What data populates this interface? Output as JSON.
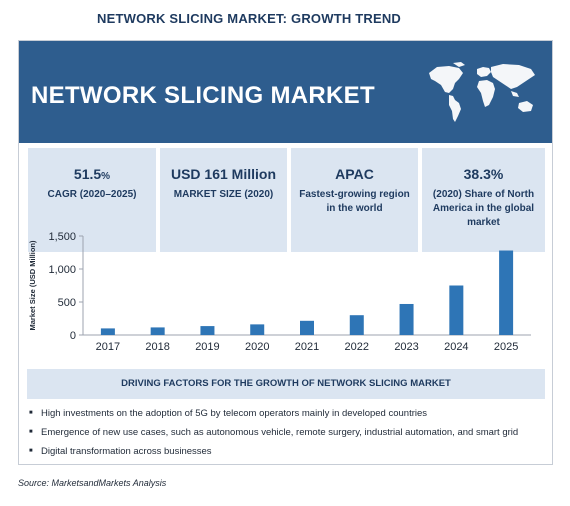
{
  "header": {
    "title": "NETWORK SLICING MARKET: GROWTH TREND"
  },
  "banner": {
    "title": "NETWORK SLICING MARKET",
    "map_icon": "world-map-icon",
    "color": "#2e5d8e"
  },
  "stats": [
    {
      "value": "51.5",
      "unit": "%",
      "label": "CAGR (2020–2025)"
    },
    {
      "value": "USD 161 Million",
      "unit": "",
      "label": "MARKET SIZE (2020)"
    },
    {
      "value": "APAC",
      "unit": "",
      "label": "Fastest-growing region in the world"
    },
    {
      "value": "38.3%",
      "unit": "",
      "label": "(2020) Share of North America in the global market"
    }
  ],
  "chart_data": {
    "type": "bar",
    "categories": [
      "2017",
      "2018",
      "2019",
      "2020",
      "2021",
      "2022",
      "2023",
      "2024",
      "2025"
    ],
    "values": [
      100,
      115,
      135,
      161,
      215,
      300,
      470,
      750,
      1280
    ],
    "ylabel": "Market Size (USD Million)",
    "ylim": [
      0,
      1500
    ],
    "yticks": [
      0,
      500,
      1000,
      1500
    ],
    "ytick_labels": [
      "0",
      "500",
      "1,000",
      "1,500"
    ],
    "bar_color": "#2e75b6",
    "grid": false
  },
  "factors": {
    "heading": "DRIVING FACTORS FOR THE GROWTH OF NETWORK SLICING MARKET",
    "items": [
      "High investments on the adoption of 5G by telecom operators mainly in developed countries",
      "Emergence of new use cases, such as autonomous vehicle, remote surgery, industrial automation, and smart grid",
      "Digital transformation across businesses"
    ]
  },
  "source": "Source: MarketsandMarkets Analysis"
}
